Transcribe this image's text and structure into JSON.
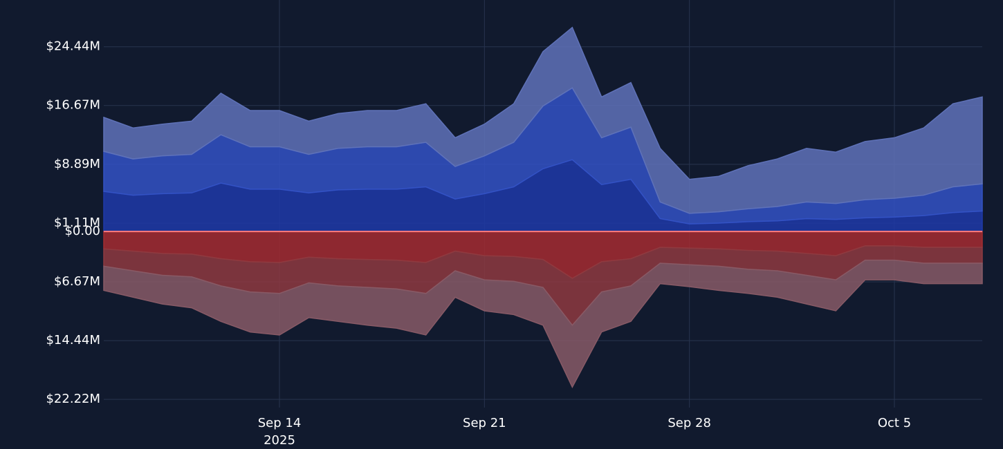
{
  "chart_data": {
    "type": "area",
    "stacked": true,
    "x": [
      "2025-09-08",
      "2025-09-09",
      "2025-09-10",
      "2025-09-11",
      "2025-09-12",
      "2025-09-13",
      "2025-09-14",
      "2025-09-15",
      "2025-09-16",
      "2025-09-17",
      "2025-09-18",
      "2025-09-19",
      "2025-09-20",
      "2025-09-21",
      "2025-09-22",
      "2025-09-23",
      "2025-09-24",
      "2025-09-25",
      "2025-09-26",
      "2025-09-27",
      "2025-09-28",
      "2025-09-29",
      "2025-09-30",
      "2025-10-01",
      "2025-10-02",
      "2025-10-03",
      "2025-10-04",
      "2025-10-05",
      "2025-10-06",
      "2025-10-07",
      "2025-10-08"
    ],
    "series": [
      {
        "color": "#1f3aa8",
        "values": [
          5.3,
          4.8,
          5.0,
          5.1,
          6.4,
          5.6,
          5.6,
          5.1,
          5.5,
          5.6,
          5.6,
          5.9,
          4.3,
          5.0,
          5.9,
          8.3,
          9.5,
          6.2,
          6.9,
          1.7,
          1.0,
          1.1,
          1.3,
          1.4,
          1.7,
          1.6,
          1.8,
          1.9,
          2.1,
          2.5,
          2.7
        ]
      },
      {
        "color": "#3352c4",
        "values": [
          5.3,
          4.8,
          5.0,
          5.1,
          6.4,
          5.6,
          5.6,
          5.1,
          5.5,
          5.6,
          5.6,
          5.9,
          4.3,
          5.0,
          5.9,
          8.3,
          9.5,
          6.2,
          6.9,
          2.2,
          1.4,
          1.5,
          1.7,
          1.9,
          2.2,
          2.1,
          2.4,
          2.5,
          2.7,
          3.4,
          3.6
        ]
      },
      {
        "color": "#5f72b8",
        "values": [
          4.5,
          4.1,
          4.2,
          4.4,
          5.5,
          4.8,
          4.8,
          4.4,
          4.6,
          4.8,
          4.8,
          5.1,
          3.8,
          4.2,
          5.1,
          7.2,
          8.0,
          5.4,
          5.9,
          7.1,
          4.5,
          4.7,
          5.7,
          6.3,
          7.1,
          6.8,
          7.7,
          8.0,
          8.9,
          11.0,
          11.5
        ]
      },
      {
        "color": "#a42c30",
        "values": [
          -2.3,
          -2.6,
          -2.9,
          -3.0,
          -3.6,
          -4.0,
          -4.1,
          -3.4,
          -3.6,
          -3.7,
          -3.8,
          -4.1,
          -2.6,
          -3.2,
          -3.3,
          -3.7,
          -6.2,
          -4.0,
          -3.6,
          -2.1,
          -2.2,
          -2.3,
          -2.5,
          -2.6,
          -2.9,
          -3.2,
          -1.9,
          -1.9,
          -2.1,
          -2.1,
          -2.1
        ]
      },
      {
        "color": "#8e3a40",
        "values": [
          -2.3,
          -2.6,
          -2.9,
          -3.0,
          -3.6,
          -4.0,
          -4.1,
          -3.4,
          -3.6,
          -3.7,
          -3.8,
          -4.1,
          -2.6,
          -3.2,
          -3.3,
          -3.7,
          -6.2,
          -4.0,
          -3.6,
          -2.1,
          -2.2,
          -2.3,
          -2.5,
          -2.6,
          -2.9,
          -3.2,
          -1.9,
          -1.9,
          -2.1,
          -2.1,
          -2.1
        ]
      },
      {
        "color": "#875a66",
        "values": [
          -3.2,
          -3.5,
          -3.8,
          -4.1,
          -4.7,
          -5.3,
          -5.5,
          -4.6,
          -4.7,
          -5.0,
          -5.2,
          -5.5,
          -3.5,
          -4.1,
          -4.4,
          -5.0,
          -8.2,
          -5.3,
          -4.7,
          -2.7,
          -2.9,
          -3.2,
          -3.2,
          -3.5,
          -3.8,
          -4.1,
          -2.6,
          -2.6,
          -2.7,
          -2.7,
          -2.7
        ]
      }
    ],
    "xlim": [
      "2025-09-08",
      "2025-10-08"
    ],
    "xticks": [
      {
        "value": "2025-09-14",
        "label": "Sep 14"
      },
      {
        "value": "2025-09-21",
        "label": "Sep 21"
      },
      {
        "value": "2025-09-28",
        "label": "Sep 28"
      },
      {
        "value": "2025-10-05",
        "label": "Oct 5"
      }
    ],
    "xtick_year": "2025",
    "ylim": [
      -23.3,
      28.8
    ],
    "yticks": [
      {
        "value": 24.44,
        "label": "$24.44M"
      },
      {
        "value": 16.67,
        "label": "$16.67M"
      },
      {
        "value": 8.89,
        "label": "$8.89M"
      },
      {
        "value": 1.11,
        "label": "$1.11M"
      },
      {
        "value": 0,
        "label": "$0.00"
      },
      {
        "value": -6.67,
        "label": "$6.67M"
      },
      {
        "value": -14.44,
        "label": "$14.44M"
      },
      {
        "value": -22.22,
        "label": "$22.22M"
      }
    ],
    "grid": true,
    "zero_line_color": "#ff7b7b"
  }
}
